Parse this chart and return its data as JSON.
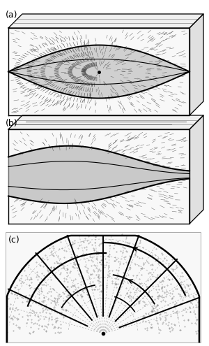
{
  "bg_color": "#ffffff",
  "line_color": "#000000",
  "fig_width": 3.0,
  "fig_height": 4.95,
  "dpi": 100,
  "label_a": "(a)",
  "label_b": "(b)",
  "label_c": "(c)"
}
